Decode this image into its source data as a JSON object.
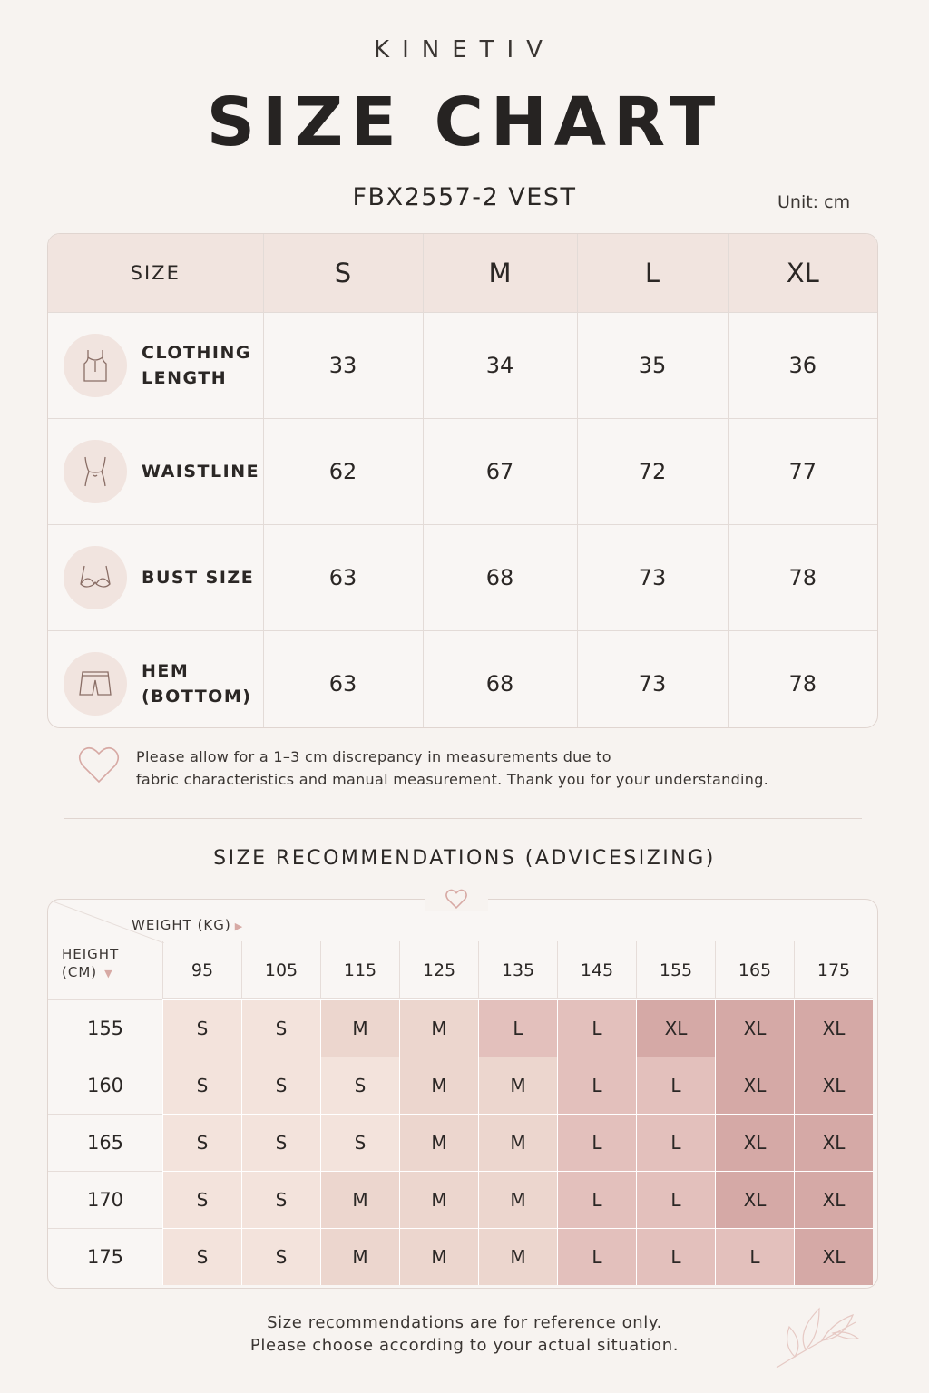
{
  "brand": "KINETIV",
  "title": "SIZE CHART",
  "product": "FBX2557-2 VEST",
  "unit": "Unit: cm",
  "size_table": {
    "header": [
      "SIZE",
      "S",
      "M",
      "L",
      "XL"
    ],
    "rows": [
      {
        "label": "CLOTHING\nLENGTH",
        "icon": "tank-top-icon",
        "values": [
          "33",
          "34",
          "35",
          "36"
        ]
      },
      {
        "label": "WAISTLINE",
        "icon": "waist-icon",
        "values": [
          "62",
          "67",
          "72",
          "77"
        ]
      },
      {
        "label": "BUST SIZE",
        "icon": "bra-icon",
        "values": [
          "63",
          "68",
          "73",
          "78"
        ]
      },
      {
        "label": "HEM\n(BOTTOM)",
        "icon": "shorts-icon",
        "values": [
          "63",
          "68",
          "73",
          "78"
        ]
      }
    ]
  },
  "note": {
    "line1": "Please allow for a 1–3 cm discrepancy in measurements due to",
    "line2": "fabric characteristics and manual measurement. Thank you for your understanding."
  },
  "recommendations": {
    "title": "SIZE RECOMMENDATIONS (ADVICESIZING)",
    "weight_label": "WEIGHT (KG)",
    "height_label_1": "HEIGHT",
    "height_label_2": "(CM)",
    "weights": [
      "95",
      "105",
      "115",
      "125",
      "135",
      "145",
      "155",
      "165",
      "175"
    ],
    "heights": [
      "155",
      "160",
      "165",
      "170",
      "175"
    ],
    "grid": [
      [
        "S",
        "S",
        "M",
        "M",
        "L",
        "L",
        "XL",
        "XL",
        "XL"
      ],
      [
        "S",
        "S",
        "S",
        "M",
        "M",
        "L",
        "L",
        "XL",
        "XL"
      ],
      [
        "S",
        "S",
        "S",
        "M",
        "M",
        "L",
        "L",
        "XL",
        "XL"
      ],
      [
        "S",
        "S",
        "M",
        "M",
        "M",
        "L",
        "L",
        "XL",
        "XL"
      ],
      [
        "S",
        "S",
        "M",
        "M",
        "M",
        "L",
        "L",
        "L",
        "XL"
      ]
    ],
    "colors": {
      "S": "#f3e3dc",
      "M": "#ecd6ce",
      "L": "#e3c0bc",
      "XL": "#d5a9a6"
    }
  },
  "footer": {
    "line1": "Size recommendations are for reference only.",
    "line2": "Please choose according to your actual situation."
  }
}
